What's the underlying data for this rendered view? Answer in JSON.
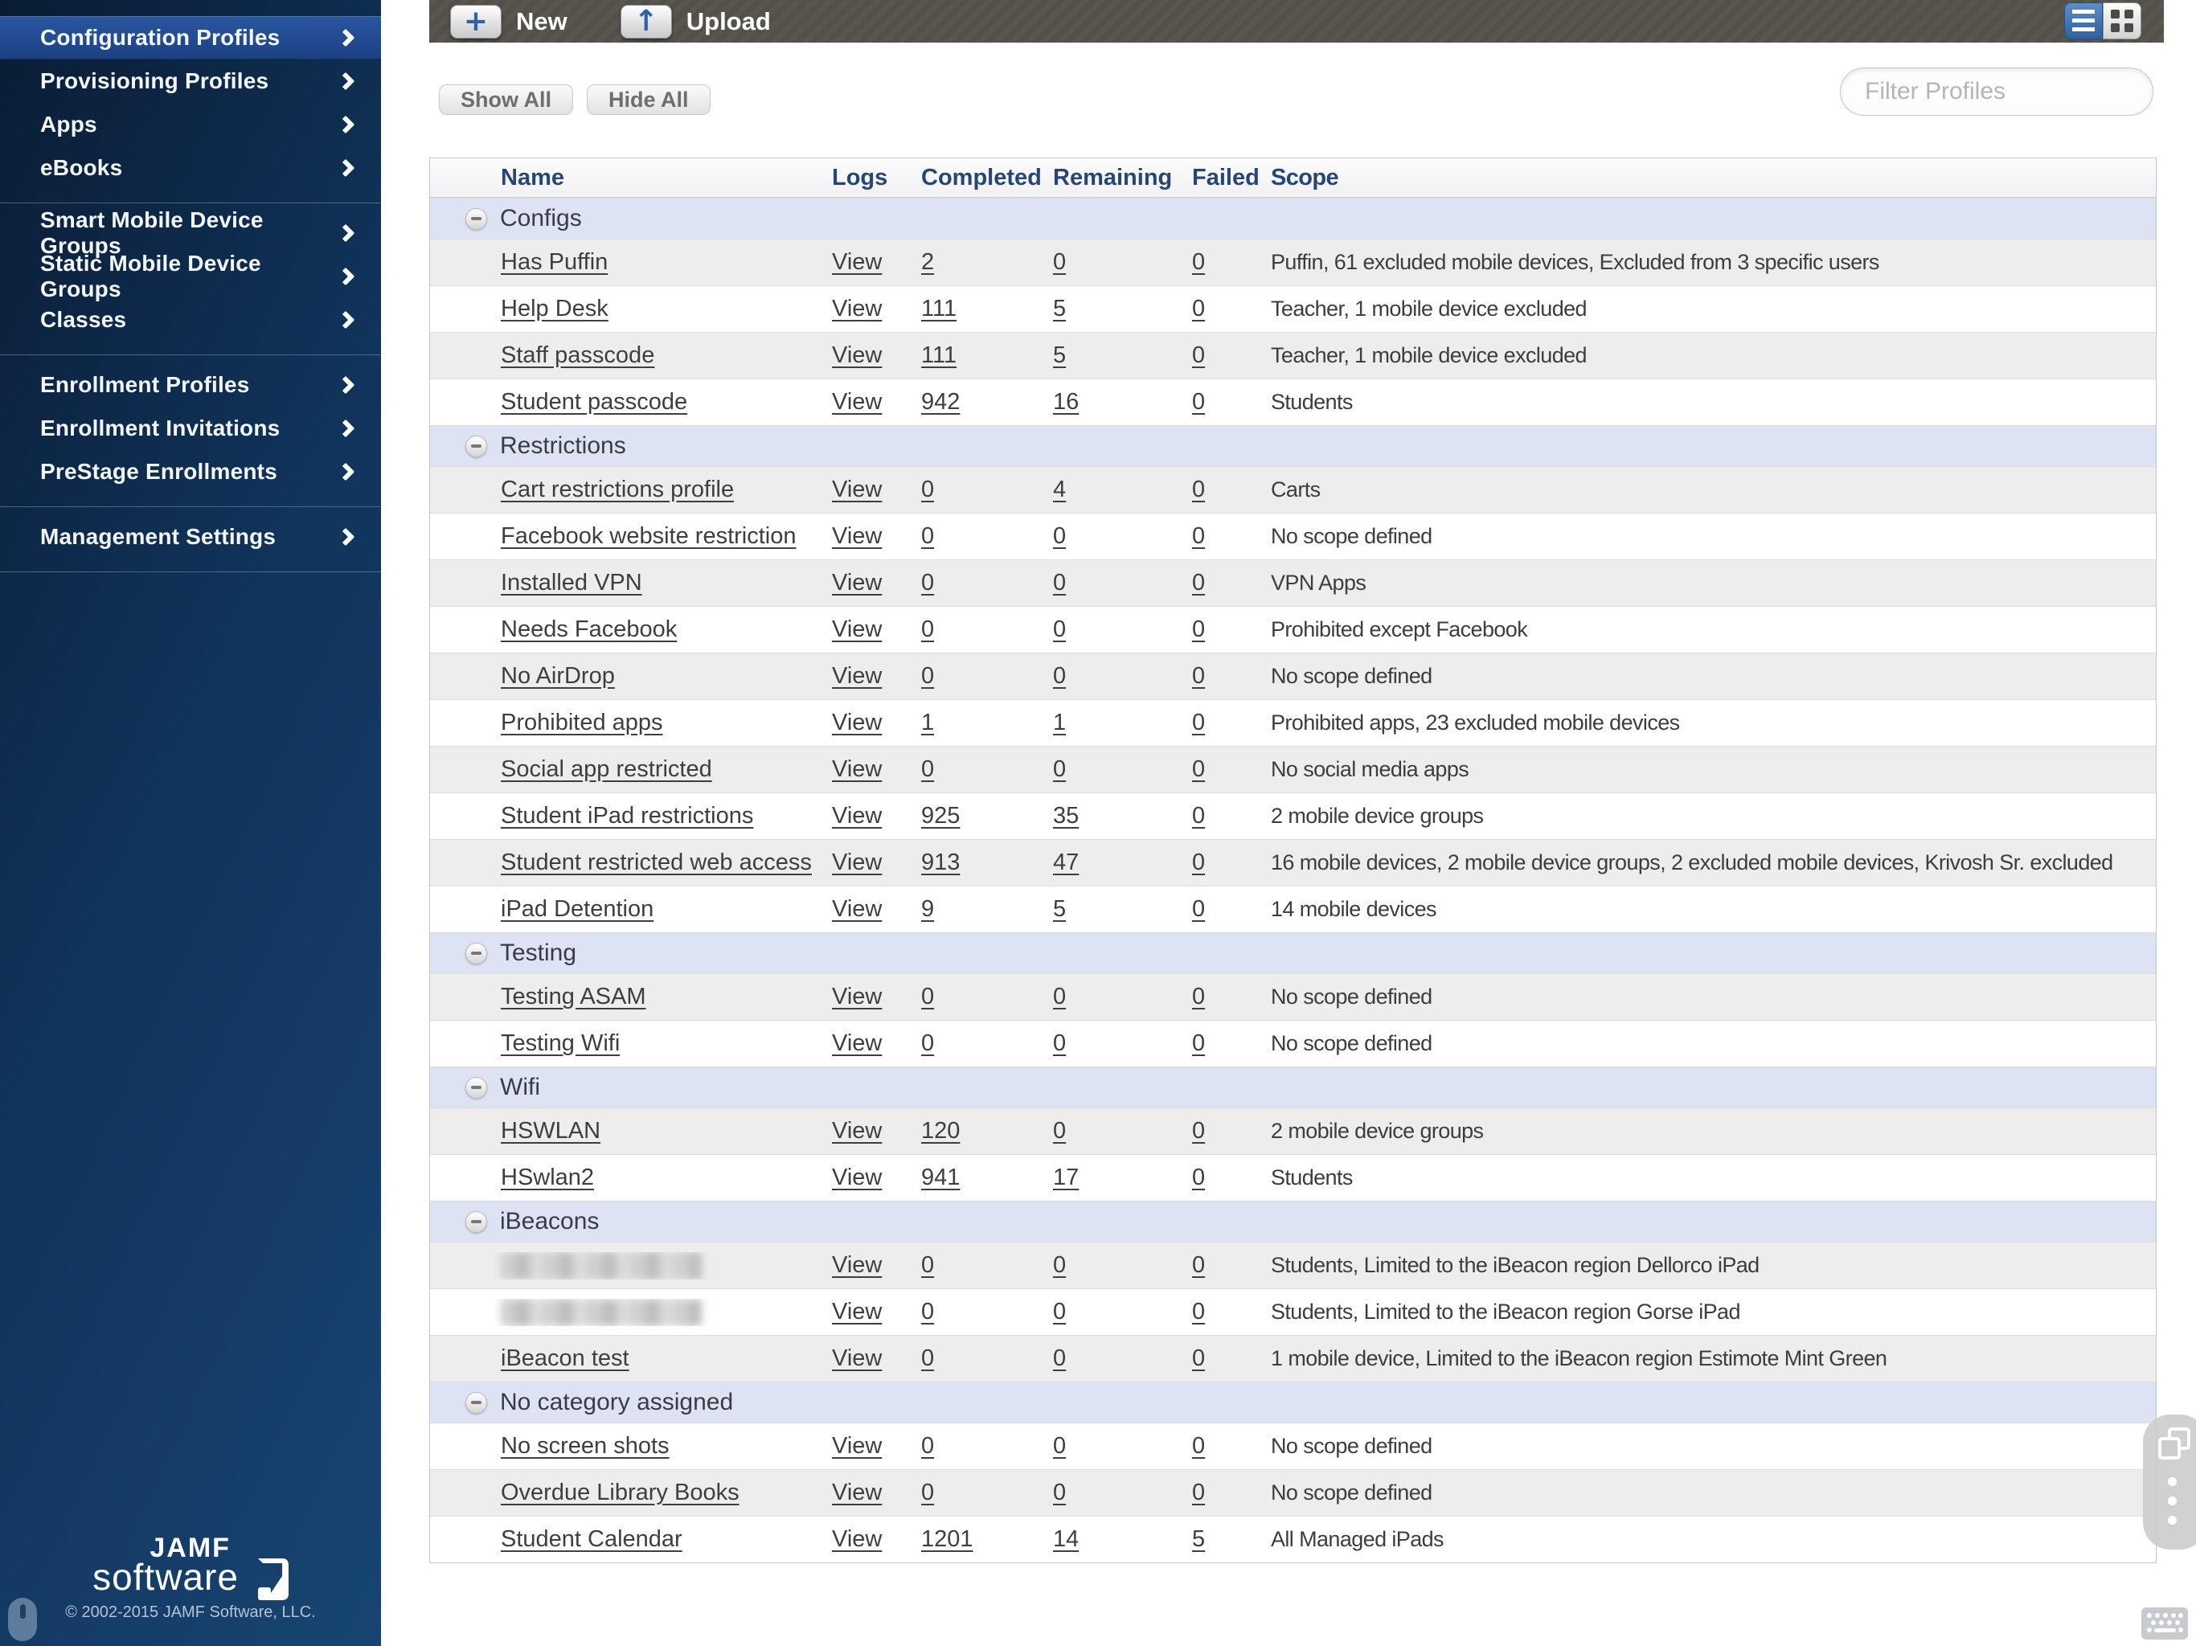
{
  "colors": {
    "accent_blue": "#2e62a8",
    "sidebar_top": "#0a1c33",
    "sidebar_bottom": "#174572",
    "sidebar_selected": "#1e4687",
    "toolbar_gray": "#56524c",
    "group_row_bg": "#dee3f3",
    "row_alt_gray": "#ededed",
    "header_text_navy": "#274676"
  },
  "icons": {
    "plus_glyph": "+",
    "upload_glyph": "↑",
    "minus_glyph": "−",
    "chevron_glyph": "›"
  },
  "toolbar": {
    "new_label": "New",
    "upload_label": "Upload"
  },
  "filter_bar": {
    "show_all_label": "Show All",
    "hide_all_label": "Hide All",
    "filter_placeholder": "Filter Profiles"
  },
  "sidebar": {
    "sections": [
      {
        "items": [
          {
            "label": "Configuration Profiles",
            "selected": true
          },
          {
            "label": "Provisioning Profiles"
          },
          {
            "label": "Apps"
          },
          {
            "label": "eBooks"
          }
        ]
      },
      {
        "items": [
          {
            "label": "Smart Mobile Device Groups"
          },
          {
            "label": "Static Mobile Device Groups"
          },
          {
            "label": "Classes"
          }
        ]
      },
      {
        "items": [
          {
            "label": "Enrollment Profiles"
          },
          {
            "label": "Enrollment Invitations"
          },
          {
            "label": "PreStage Enrollments"
          }
        ]
      },
      {
        "items": [
          {
            "label": "Management Settings"
          }
        ]
      }
    ],
    "logo": {
      "brand_top": "JAMF",
      "brand_bottom": "software",
      "copyright": "© 2002-2015 JAMF Software, LLC."
    }
  },
  "table": {
    "headers": [
      "Name",
      "Logs",
      "Completed",
      "Remaining",
      "Failed",
      "Scope"
    ],
    "logs_link_label": "View",
    "groups": [
      {
        "label": "Configs",
        "rows": [
          {
            "name": "Has Puffin",
            "completed": "2",
            "remaining": "0",
            "failed": "0",
            "scope": "Puffin, 61 excluded mobile devices, Excluded from 3 specific users"
          },
          {
            "name": "Help Desk",
            "completed": "111",
            "remaining": "5",
            "failed": "0",
            "scope": "Teacher, 1 mobile device excluded"
          },
          {
            "name": "Staff passcode",
            "completed": "111",
            "remaining": "5",
            "failed": "0",
            "scope": "Teacher, 1 mobile device excluded"
          },
          {
            "name": "Student passcode",
            "completed": "942",
            "remaining": "16",
            "failed": "0",
            "scope": "Students"
          }
        ]
      },
      {
        "label": "Restrictions",
        "rows": [
          {
            "name": "Cart restrictions profile",
            "completed": "0",
            "remaining": "4",
            "failed": "0",
            "scope": "Carts"
          },
          {
            "name": "Facebook website restriction",
            "completed": "0",
            "remaining": "0",
            "failed": "0",
            "scope": "No scope defined"
          },
          {
            "name": "Installed VPN",
            "completed": "0",
            "remaining": "0",
            "failed": "0",
            "scope": "VPN Apps"
          },
          {
            "name": "Needs Facebook",
            "completed": "0",
            "remaining": "0",
            "failed": "0",
            "scope": "Prohibited except Facebook"
          },
          {
            "name": "No AirDrop",
            "completed": "0",
            "remaining": "0",
            "failed": "0",
            "scope": "No scope defined"
          },
          {
            "name": "Prohibited apps",
            "completed": "1",
            "remaining": "1",
            "failed": "0",
            "scope": "Prohibited apps, 23 excluded mobile devices"
          },
          {
            "name": "Social app restricted",
            "completed": "0",
            "remaining": "0",
            "failed": "0",
            "scope": "No social media apps"
          },
          {
            "name": "Student iPad restrictions",
            "completed": "925",
            "remaining": "35",
            "failed": "0",
            "scope": "2 mobile device groups"
          },
          {
            "name": "Student restricted web access",
            "completed": "913",
            "remaining": "47",
            "failed": "0",
            "scope": "16 mobile devices, 2 mobile device groups, 2 excluded mobile devices, Krivosh Sr. excluded"
          },
          {
            "name": "iPad Detention",
            "completed": "9",
            "remaining": "5",
            "failed": "0",
            "scope": "14 mobile devices"
          }
        ]
      },
      {
        "label": "Testing",
        "rows": [
          {
            "name": "Testing ASAM",
            "completed": "0",
            "remaining": "0",
            "failed": "0",
            "scope": "No scope defined"
          },
          {
            "name": "Testing Wifi",
            "completed": "0",
            "remaining": "0",
            "failed": "0",
            "scope": "No scope defined"
          }
        ]
      },
      {
        "label": "Wifi",
        "rows": [
          {
            "name": "HSWLAN",
            "completed": "120",
            "remaining": "0",
            "failed": "0",
            "scope": "2 mobile device groups"
          },
          {
            "name": "HSwlan2",
            "completed": "941",
            "remaining": "17",
            "failed": "0",
            "scope": "Students"
          }
        ]
      },
      {
        "label": "iBeacons",
        "rows": [
          {
            "name": "",
            "redacted": true,
            "completed": "0",
            "remaining": "0",
            "failed": "0",
            "scope": "Students, Limited to the iBeacon region Dellorco iPad"
          },
          {
            "name": "",
            "redacted": true,
            "completed": "0",
            "remaining": "0",
            "failed": "0",
            "scope": "Students, Limited to the iBeacon region Gorse iPad"
          },
          {
            "name": "iBeacon test",
            "completed": "0",
            "remaining": "0",
            "failed": "0",
            "scope": "1 mobile device, Limited to the iBeacon region Estimote Mint Green"
          }
        ]
      },
      {
        "label": "No category assigned",
        "rows": [
          {
            "name": "No screen shots",
            "completed": "0",
            "remaining": "0",
            "failed": "0",
            "scope": "No scope defined"
          },
          {
            "name": "Overdue Library Books",
            "completed": "0",
            "remaining": "0",
            "failed": "0",
            "scope": "No scope defined"
          },
          {
            "name": "Student Calendar",
            "completed": "1201",
            "remaining": "14",
            "failed": "5",
            "scope": "All Managed iPads"
          }
        ]
      }
    ]
  }
}
